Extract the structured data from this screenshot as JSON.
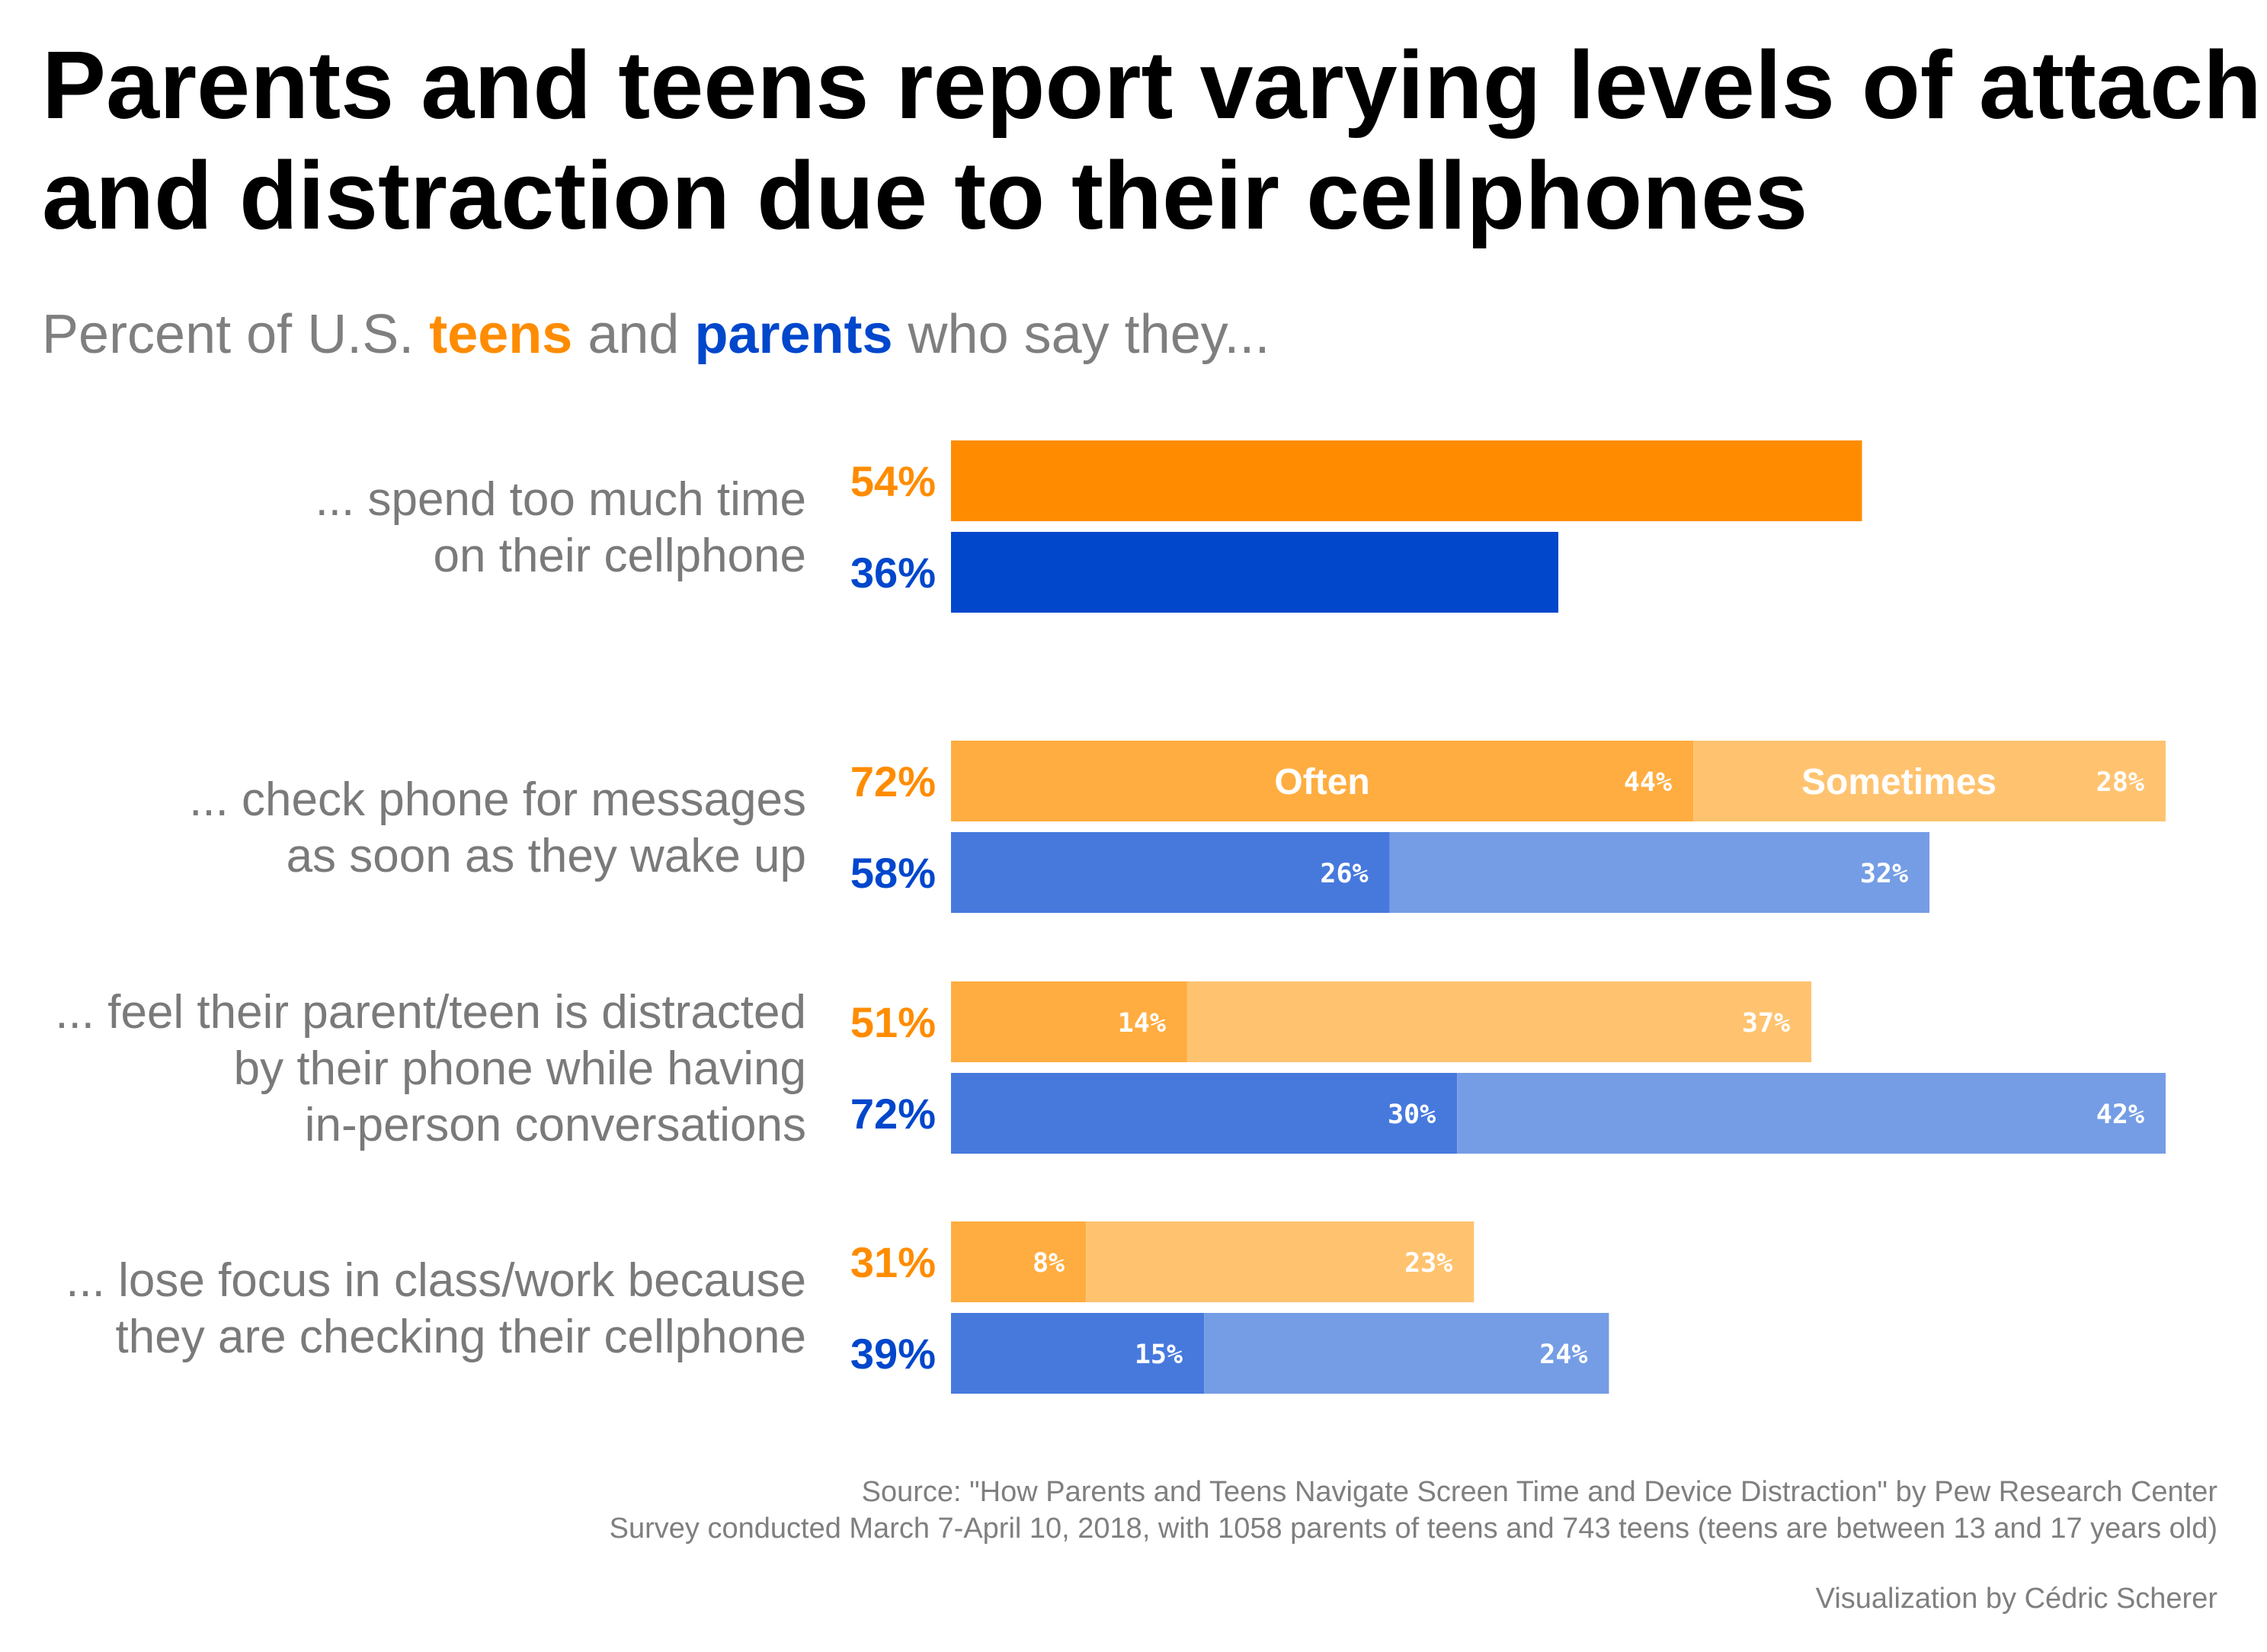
{
  "title_line1": "Parents and teens report varying levels of attachment",
  "title_line2": "and distraction due to their cellphones",
  "subtitle": {
    "prefix": "Percent of U.S. ",
    "teens": "teens",
    "and": " and ",
    "parents": "parents",
    "suffix": " who say they..."
  },
  "colors": {
    "teen": "#ff8c00",
    "parent": "#0047cc",
    "teen_often": "#ffad40",
    "teen_sometimes": "#ffc370",
    "parent_often": "#4779dd",
    "parent_sometimes": "#759de5",
    "label_gray": "#7a7a7a"
  },
  "chart_data": {
    "type": "bar",
    "orientation": "horizontal",
    "stacked": true,
    "xlim": [
      0,
      80
    ],
    "series_names": [
      "teens",
      "parents"
    ],
    "segment_names": [
      "Often",
      "Sometimes"
    ],
    "questions": [
      {
        "label": [
          "... spend too much time",
          "on their cellphone"
        ],
        "teens": {
          "total": 54,
          "total_label": "54%"
        },
        "parents": {
          "total": 36,
          "total_label": "36%"
        }
      },
      {
        "label": [
          "... check phone for messages",
          "as soon as they wake up"
        ],
        "teens": {
          "total": 72,
          "total_label": "72%",
          "often": 44,
          "often_label": "44%",
          "sometimes": 28,
          "sometimes_label": "28%"
        },
        "parents": {
          "total": 58,
          "total_label": "58%",
          "often": 26,
          "often_label": "26%",
          "sometimes": 32,
          "sometimes_label": "32%"
        }
      },
      {
        "label": [
          "... feel their parent/teen is distracted",
          "by their phone while having",
          "in-person conversations"
        ],
        "teens": {
          "total": 51,
          "total_label": "51%",
          "often": 14,
          "often_label": "14%",
          "sometimes": 37,
          "sometimes_label": "37%"
        },
        "parents": {
          "total": 72,
          "total_label": "72%",
          "often": 30,
          "often_label": "30%",
          "sometimes": 42,
          "sometimes_label": "42%"
        }
      },
      {
        "label": [
          "... lose focus in class/work because",
          "they are checking their cellphone"
        ],
        "teens": {
          "total": 31,
          "total_label": "31%",
          "often": 8,
          "often_label": "8%",
          "sometimes": 23,
          "sometimes_label": "23%"
        },
        "parents": {
          "total": 39,
          "total_label": "39%",
          "often": 15,
          "often_label": "15%",
          "sometimes": 24,
          "sometimes_label": "24%"
        }
      }
    ]
  },
  "caption_source": "Source: \"How Parents and Teens Navigate Screen Time and Device Distraction\" by Pew Research Center",
  "caption_survey": "Survey conducted March 7-April 10, 2018, with 1058 parents of teens and 743 teens (teens are between 13 and 17 years old)",
  "caption_credit": "Visualization by Cédric Scherer"
}
